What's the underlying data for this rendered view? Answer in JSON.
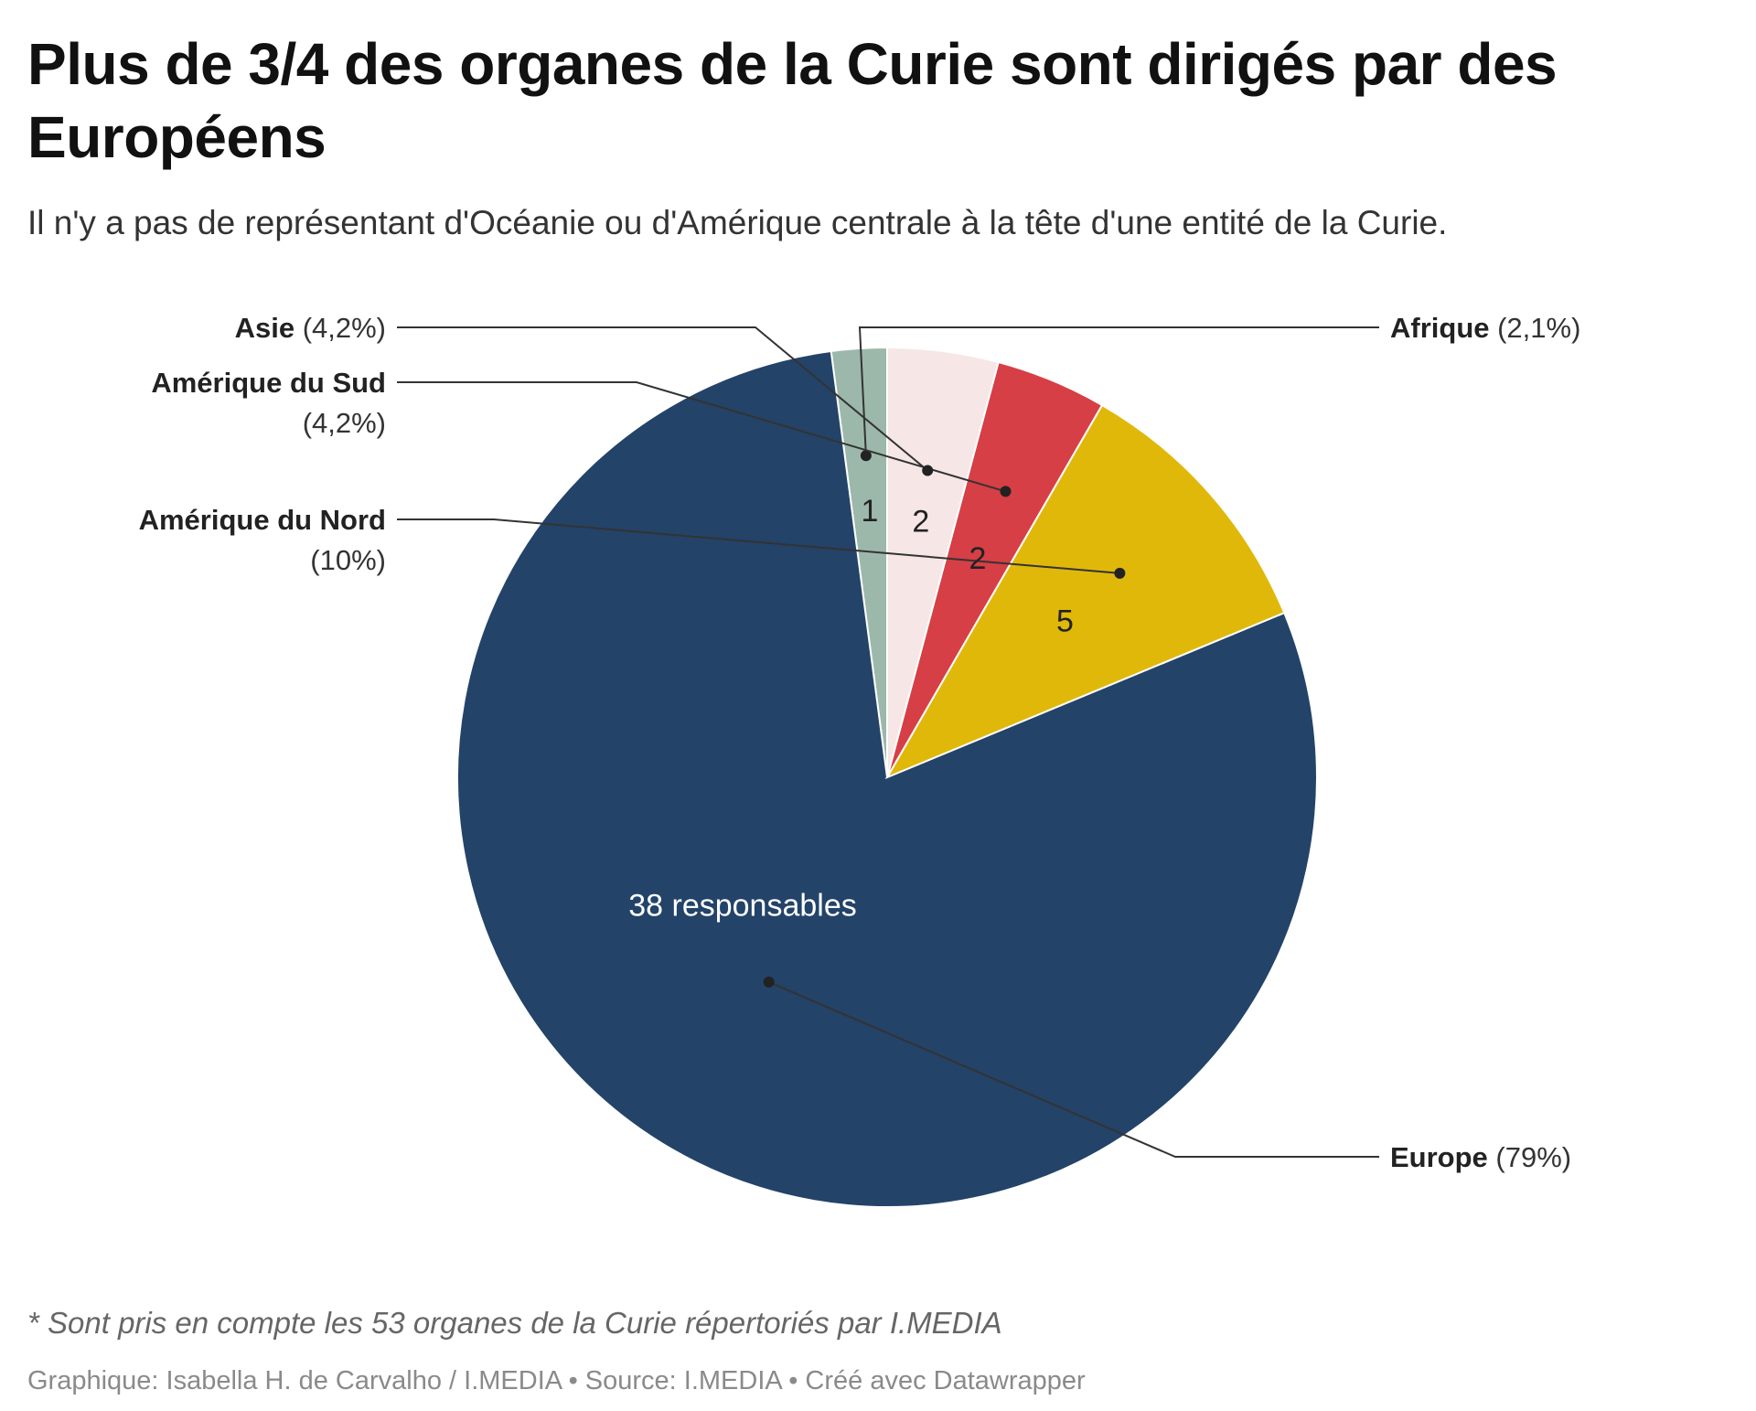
{
  "chart_data": {
    "type": "pie",
    "title": "Plus de 3/4 des organes de la Curie sont dirigés par des Européens",
    "subtitle": "Il n'y a pas de représentant d'Océanie ou d'Amérique centrale à la tête d'une entité de la Curie.",
    "slices": [
      {
        "name": "Afrique",
        "value": 1,
        "label": "1",
        "percent_label": "(2,1%)",
        "color": "#9cb8aa",
        "label_color": "#222222"
      },
      {
        "name": "Europe",
        "value": 38,
        "label": "38 responsables",
        "percent_label": "(79%)",
        "color": "#234369",
        "label_color": "#ffffff"
      },
      {
        "name": "Amérique du Nord",
        "value": 5,
        "label": "5",
        "percent_label": "(10%)",
        "color": "#e0b80a",
        "label_color": "#222222"
      },
      {
        "name": "Amérique du Sud",
        "value": 2,
        "label": "2",
        "percent_label": "(4,2%)",
        "color": "#d63f45",
        "label_color": "#222222"
      },
      {
        "name": "Asie",
        "value": 2,
        "label": "2",
        "percent_label": "(4,2%)",
        "color": "#f6e6e6",
        "label_color": "#222222"
      }
    ],
    "start_angle": "12 o'clock",
    "direction": "counterclockwise",
    "legend": "none (direct labels with leader lines)",
    "notes": "* Sont pris en compte les 53 organes de la Curie répertoriés par I.MEDIA",
    "footer": "Graphique: Isabella H. de Carvalho / I.MEDIA • Source: I.MEDIA • Créé avec Datawrapper"
  }
}
